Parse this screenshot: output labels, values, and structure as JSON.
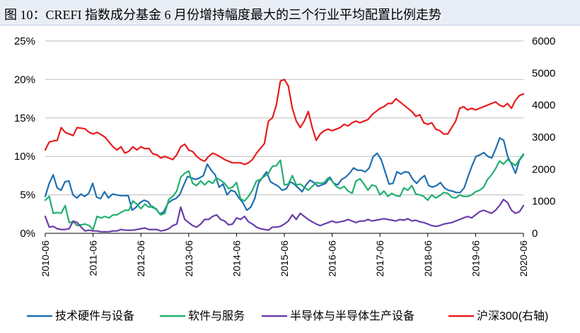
{
  "title": "图 10：CREFI 指数成分基金 6 月份增持幅度最大的三个行业平均配置比例走势",
  "chart_data": {
    "type": "line",
    "x_start": "2010-06",
    "x_end": "2020-06",
    "x_ticks": [
      "2010-06",
      "2011-06",
      "2012-06",
      "2013-06",
      "2014-06",
      "2015-06",
      "2016-06",
      "2017-06",
      "2018-06",
      "2019-06",
      "2020-06"
    ],
    "y_left": {
      "min": 0,
      "max": 25,
      "ticks": [
        "0%",
        "5%",
        "10%",
        "15%",
        "20%",
        "25%"
      ],
      "tick_values": [
        0,
        5,
        10,
        15,
        20,
        25
      ]
    },
    "y_right": {
      "min": 0,
      "max": 6000,
      "ticks": [
        "0",
        "1000",
        "2000",
        "3000",
        "4000",
        "5000",
        "6000"
      ],
      "tick_values": [
        0,
        1000,
        2000,
        3000,
        4000,
        5000,
        6000
      ]
    },
    "gridlines": "horizontal",
    "legend_position": "bottom",
    "series": [
      {
        "name": "技术硬件与设备",
        "axis": "left",
        "color": "#1f6fb0",
        "values": [
          4.8,
          6.5,
          7.6,
          5.9,
          5.6,
          6.7,
          6.8,
          5.0,
          4.6,
          5.1,
          4.8,
          5.2,
          6.5,
          4.7,
          4.5,
          5.4,
          4.6,
          5.1,
          5.0,
          4.9,
          4.9,
          4.9,
          3.0,
          3.4,
          4.0,
          4.3,
          4.1,
          3.4,
          3.2,
          2.5,
          2.8,
          3.9,
          4.3,
          4.5,
          5.0,
          6.2,
          7.4,
          7.2,
          7.0,
          7.2,
          7.5,
          9.0,
          8.2,
          7.6,
          6.0,
          6.4,
          5.0,
          5.6,
          5.4,
          4.6,
          4.0,
          3.0,
          3.4,
          4.5,
          6.6,
          7.3,
          8.0,
          6.7,
          6.4,
          6.1,
          5.6,
          5.8,
          6.7,
          6.4,
          5.9,
          5.4,
          6.3,
          6.9,
          6.6,
          6.1,
          6.3,
          6.5,
          7.3,
          6.5,
          6.3,
          7.0,
          7.3,
          7.8,
          8.5,
          8.2,
          8.2,
          8.0,
          8.5,
          10.0,
          10.4,
          9.6,
          8.0,
          6.4,
          6.5,
          8.0,
          7.7,
          8.0,
          7.9,
          7.0,
          6.5,
          7.1,
          7.5,
          6.2,
          6.0,
          6.2,
          6.6,
          5.9,
          5.6,
          5.5,
          5.3,
          5.3,
          5.9,
          7.4,
          8.8,
          10.0,
          10.2,
          10.5,
          10.0,
          9.8,
          11.0,
          12.4,
          12.1,
          10.0,
          9.0,
          7.8,
          9.5,
          10.2
        ]
      },
      {
        "name": "软件与服务",
        "axis": "left",
        "color": "#22b070",
        "values": [
          4.3,
          4.8,
          2.6,
          2.7,
          2.6,
          3.6,
          1.4,
          1.5,
          1.0,
          1.1,
          1.2,
          1.0,
          0.5,
          2.2,
          2.0,
          2.2,
          2.0,
          2.4,
          2.4,
          2.7,
          3.0,
          3.0,
          4.2,
          3.8,
          3.2,
          3.8,
          3.4,
          3.5,
          3.0,
          2.4,
          2.6,
          4.4,
          4.8,
          5.5,
          7.3,
          7.8,
          8.1,
          6.5,
          6.2,
          6.8,
          6.3,
          6.8,
          6.5,
          7.2,
          6.9,
          6.5,
          5.8,
          6.0,
          6.6,
          4.5,
          4.2,
          4.8,
          5.6,
          6.8,
          7.0,
          7.4,
          7.8,
          8.7,
          8.8,
          9.5,
          6.3,
          6.4,
          7.5,
          6.3,
          6.4,
          6.0,
          5.6,
          6.1,
          6.6,
          6.5,
          6.6,
          7.2,
          6.8,
          6.1,
          5.8,
          6.1,
          5.5,
          5.2,
          6.8,
          7.1,
          6.4,
          5.6,
          6.3,
          6.1,
          5.0,
          5.5,
          4.8,
          5.2,
          4.9,
          4.8,
          5.9,
          5.6,
          6.2,
          5.1,
          5.0,
          4.8,
          4.3,
          5.0,
          4.6,
          4.9,
          5.3,
          5.2,
          4.7,
          4.6,
          5.0,
          4.8,
          4.8,
          5.0,
          5.4,
          5.6,
          6.0,
          7.0,
          7.6,
          8.4,
          9.4,
          9.0,
          9.6,
          9.2,
          8.8,
          9.6,
          10.3
        ]
      },
      {
        "name": "半导体与半导体生产设备",
        "axis": "left",
        "color": "#6a3da8",
        "values": [
          2.2,
          0.8,
          0.9,
          0.6,
          0.5,
          0.5,
          0.6,
          1.6,
          1.4,
          0.8,
          0.3,
          0.4,
          0.3,
          0.3,
          0.2,
          0.2,
          0.2,
          0.3,
          0.3,
          0.5,
          0.4,
          0.4,
          0.4,
          0.5,
          0.6,
          0.7,
          0.5,
          0.5,
          0.5,
          0.3,
          0.4,
          0.6,
          1.0,
          1.2,
          3.4,
          1.8,
          1.4,
          1.0,
          0.8,
          1.2,
          1.8,
          1.8,
          2.2,
          2.4,
          1.8,
          1.6,
          1.1,
          1.2,
          2.0,
          1.8,
          2.2,
          1.5,
          1.2,
          0.8,
          0.6,
          0.5,
          0.4,
          0.8,
          0.8,
          0.9,
          1.2,
          1.6,
          2.4,
          1.8,
          2.6,
          2.2,
          1.8,
          1.5,
          1.2,
          1.0,
          1.2,
          1.4,
          1.6,
          1.4,
          1.5,
          1.6,
          1.8,
          1.6,
          1.4,
          1.6,
          1.6,
          1.8,
          1.6,
          1.7,
          1.8,
          1.9,
          1.8,
          1.7,
          1.6,
          1.8,
          1.7,
          1.9,
          1.6,
          1.7,
          1.5,
          1.4,
          1.2,
          1.0,
          0.9,
          1.0,
          1.2,
          1.3,
          1.4,
          1.6,
          1.8,
          2.0,
          2.2,
          2.0,
          2.4,
          2.8,
          3.0,
          2.8,
          2.6,
          3.0,
          3.6,
          4.4,
          4.0,
          3.0,
          2.6,
          2.8,
          3.6
        ]
      },
      {
        "name": "沪深300(右轴)",
        "axis": "right",
        "color": "#e81c1c",
        "values": [
          2600,
          2850,
          2880,
          2900,
          3300,
          3150,
          3100,
          3050,
          3300,
          3280,
          3260,
          3150,
          3100,
          3150,
          3080,
          3000,
          2850,
          2700,
          2600,
          2700,
          2500,
          2560,
          2700,
          2600,
          2700,
          2640,
          2650,
          2480,
          2450,
          2350,
          2400,
          2350,
          2300,
          2450,
          2700,
          2780,
          2600,
          2550,
          2400,
          2300,
          2250,
          2400,
          2500,
          2450,
          2380,
          2300,
          2250,
          2200,
          2200,
          2200,
          2150,
          2200,
          2300,
          2500,
          2650,
          2800,
          3500,
          3600,
          4000,
          4750,
          4800,
          4600,
          3900,
          3500,
          3300,
          3500,
          3800,
          3300,
          2900,
          3100,
          3200,
          3250,
          3200,
          3250,
          3300,
          3400,
          3350,
          3450,
          3500,
          3450,
          3500,
          3550,
          3700,
          3800,
          3900,
          3950,
          4050,
          4050,
          4200,
          4100,
          4000,
          3900,
          3800,
          3650,
          3700,
          3450,
          3400,
          3450,
          3250,
          3200,
          3100,
          3100,
          3300,
          3500,
          3900,
          3950,
          3850,
          3900,
          3850,
          3900,
          3950,
          4000,
          4050,
          4100,
          4000,
          3950,
          4050,
          3900,
          4150,
          4300,
          4350
        ]
      }
    ]
  },
  "legend": [
    {
      "label": "技术硬件与设备",
      "color": "#1f6fb0"
    },
    {
      "label": "软件与服务",
      "color": "#22b070"
    },
    {
      "label": "半导体与半导体生产设备",
      "color": "#6a3da8"
    },
    {
      "label": "沪深300(右轴)",
      "color": "#e81c1c"
    }
  ]
}
